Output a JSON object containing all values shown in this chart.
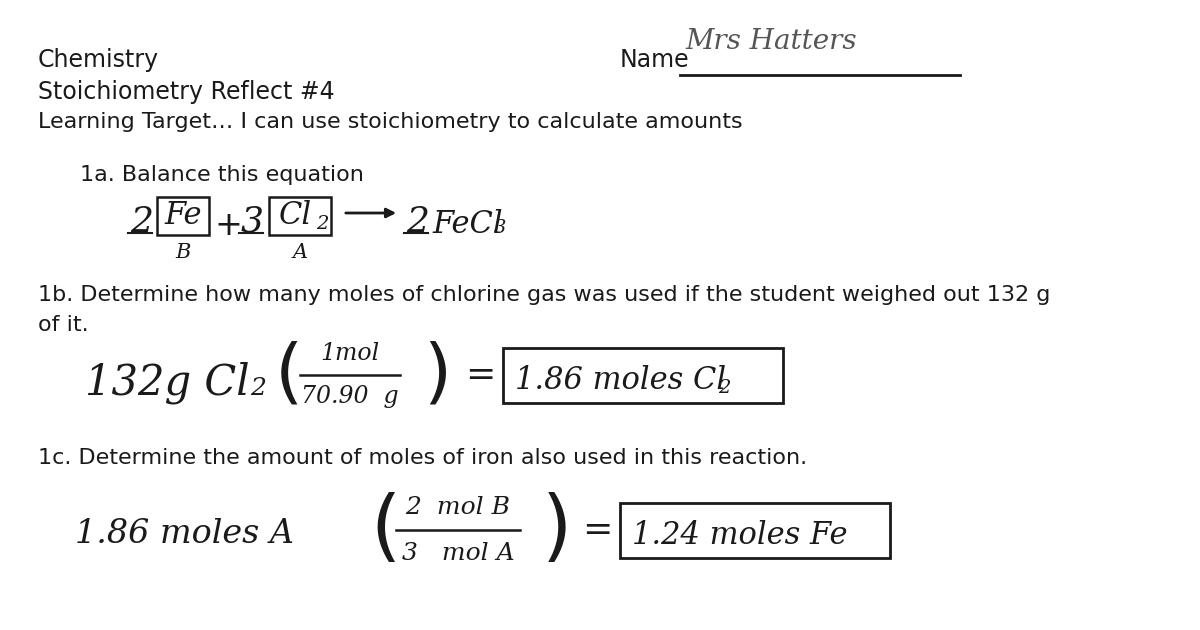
{
  "background_color": "#ffffff",
  "text_color": "#1a1a1a",
  "title_line1": "Chemistry",
  "title_line2": "Stoichiometry Reflect #4",
  "title_line3": "Learning Target… I can use stoichiometry to calculate amounts",
  "name_label": "Name",
  "q1a_label": "1a. Balance this equation",
  "q1b_label": "1b. Determine how many moles of chlorine gas was used if the student weighed out 132 g",
  "q1b_label2": "of it.",
  "q1c_label": "1c. Determine the amount of moles of iron also used in this reaction.",
  "header_fontsize": 16,
  "body_fontsize": 15,
  "math_large": 24,
  "math_small": 14,
  "math_sub": 11
}
